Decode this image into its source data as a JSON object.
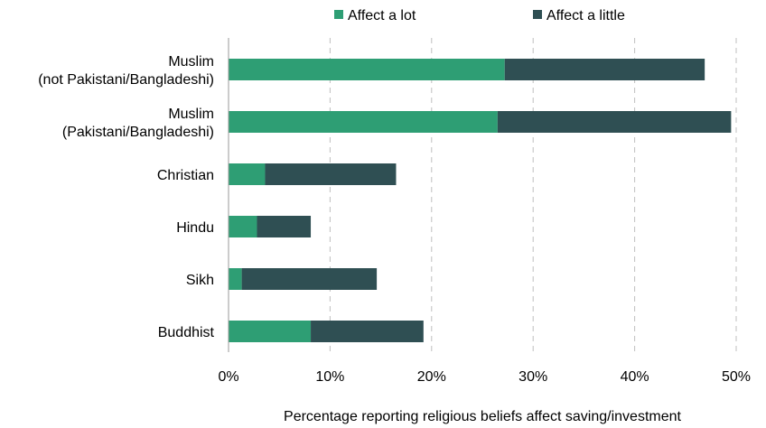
{
  "chart_data": {
    "type": "bar",
    "orientation": "horizontal",
    "stacked": true,
    "categories": [
      [
        "Muslim",
        "(not Pakistani/Bangladeshi)"
      ],
      [
        "Muslim",
        "(Pakistani/Bangladeshi)"
      ],
      [
        "Christian"
      ],
      [
        "Hindu"
      ],
      [
        "Sikh"
      ],
      [
        "Buddhist"
      ]
    ],
    "series": [
      {
        "name": "Affect a lot",
        "color": "#2e9e74",
        "values": [
          27.2,
          26.5,
          3.6,
          2.8,
          1.3,
          8.1
        ]
      },
      {
        "name": "Affect a little",
        "color": "#2f4f53",
        "values": [
          19.7,
          23.0,
          12.9,
          5.3,
          13.3,
          11.1
        ]
      }
    ],
    "xlabel": "Percentage reporting religious beliefs affect saving/investment",
    "xlim": [
      0,
      50
    ],
    "xticks": [
      0,
      10,
      20,
      30,
      40,
      50
    ],
    "tick_suffix": "%",
    "grid": "vertical-dashed",
    "legend_position": "top"
  }
}
